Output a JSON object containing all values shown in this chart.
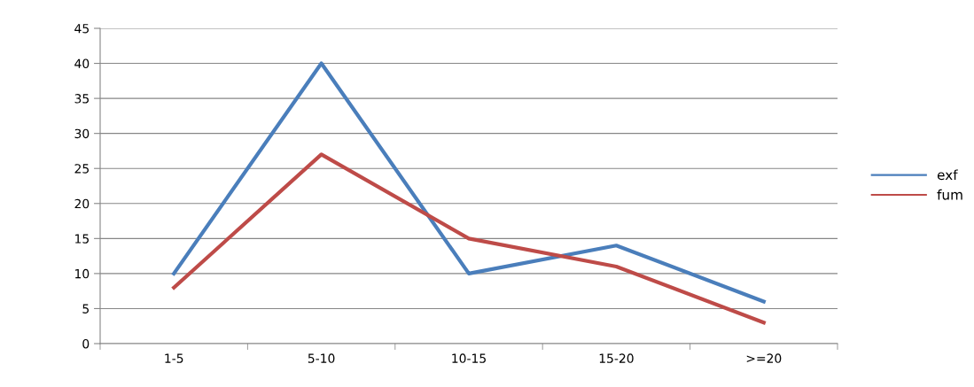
{
  "chart_data": {
    "type": "line",
    "categories": [
      "1-5",
      "5-10",
      "10-15",
      "15-20",
      ">=20"
    ],
    "series": [
      {
        "name": "exf",
        "color": "#4a7ebb",
        "values": [
          10,
          40,
          10,
          14,
          6
        ]
      },
      {
        "name": "fum",
        "color": "#be4b48",
        "values": [
          8,
          27,
          15,
          11,
          3
        ]
      }
    ],
    "ylim": [
      0,
      45
    ],
    "yticks": [
      0,
      5,
      10,
      15,
      20,
      25,
      30,
      35,
      40,
      45
    ],
    "grid": "y",
    "legend": "right",
    "marker": "none",
    "line_style": "solid"
  }
}
